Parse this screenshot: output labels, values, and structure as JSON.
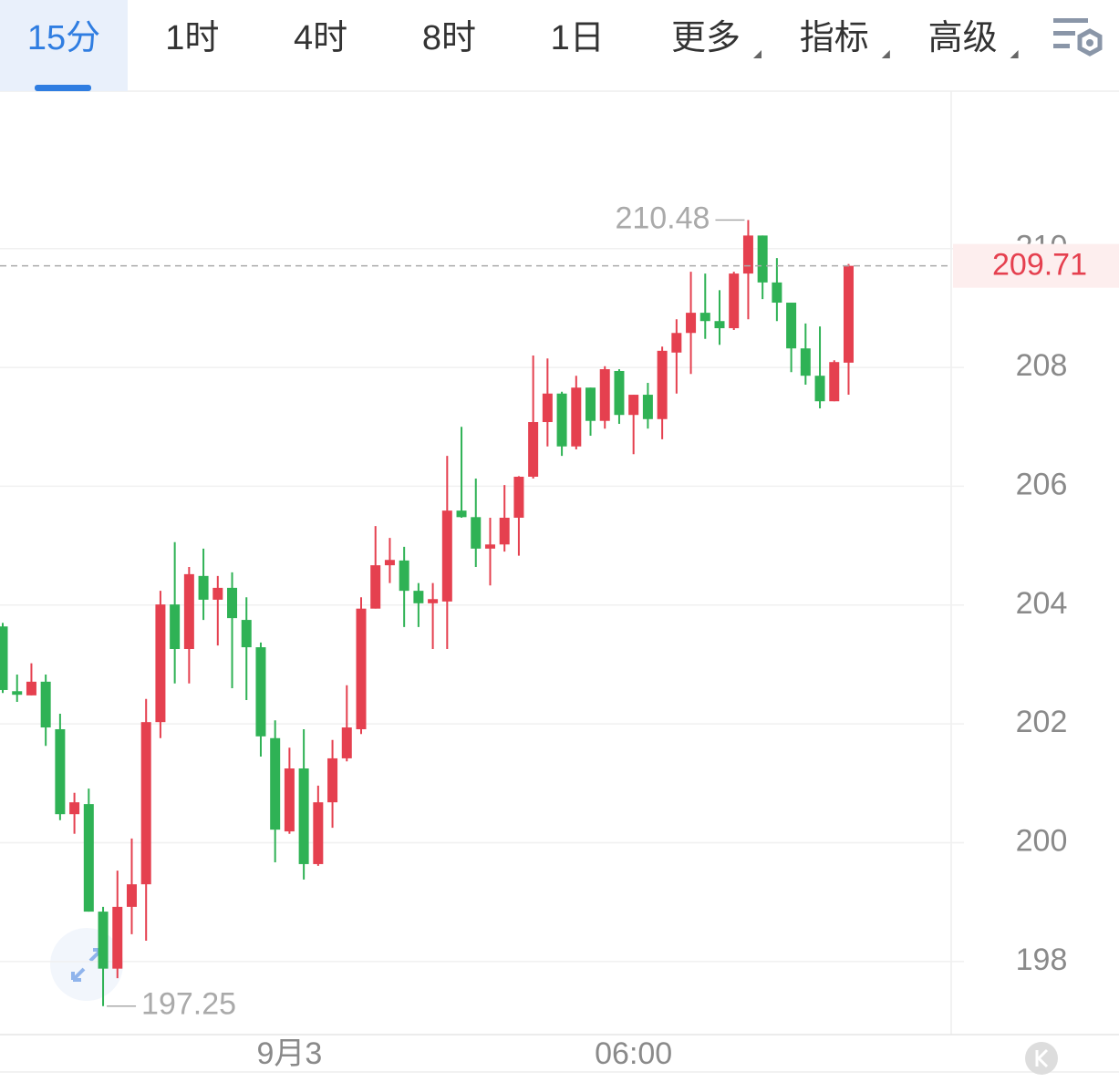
{
  "toolbar": {
    "tabs": [
      "15分",
      "1时",
      "4时",
      "8时",
      "1日",
      "更多",
      "指标",
      "高级"
    ],
    "active": 0
  },
  "chart_data": {
    "type": "candlestick",
    "up_color": "#e5404f",
    "down_color": "#2fb255",
    "categories": [
      null,
      null,
      null,
      null,
      null,
      null,
      null,
      null,
      null,
      null,
      null,
      null,
      null,
      null,
      null,
      null,
      null,
      null,
      null,
      null,
      "9月3",
      null,
      null,
      null,
      null,
      null,
      null,
      null,
      null,
      null,
      null,
      null,
      null,
      null,
      null,
      null,
      null,
      null,
      null,
      null,
      null,
      null,
      null,
      null,
      "06:00",
      null,
      null,
      null,
      null,
      null,
      null,
      null,
      null,
      null,
      null,
      null,
      null,
      null,
      null,
      null
    ],
    "open": [
      203.64,
      202.55,
      202.48,
      202.71,
      201.91,
      200.48,
      200.65,
      198.84,
      197.88,
      198.92,
      199.3,
      202.03,
      204.01,
      203.26,
      204.49,
      204.09,
      204.29,
      203.75,
      203.29,
      201.76,
      200.19,
      201.25,
      199.64,
      200.68,
      201.42,
      201.91,
      203.94,
      204.67,
      204.75,
      204.24,
      204.03,
      204.06,
      205.59,
      205.48,
      204.95,
      205.02,
      205.47,
      206.16,
      207.08,
      207.56,
      206.67,
      207.66,
      207.1,
      207.94,
      207.2,
      207.54,
      207.13,
      208.25,
      208.58,
      208.92,
      208.78,
      208.66,
      209.58,
      210.22,
      209.43,
      209.09,
      208.32,
      207.86,
      207.43,
      208.08
    ],
    "high": [
      203.7,
      202.83,
      203.02,
      202.83,
      202.17,
      200.84,
      200.91,
      198.92,
      199.53,
      200.07,
      202.42,
      204.24,
      205.06,
      204.64,
      204.95,
      204.49,
      204.55,
      204.13,
      203.37,
      202.06,
      201.6,
      201.91,
      200.96,
      201.73,
      202.65,
      204.13,
      205.33,
      205.13,
      204.98,
      204.37,
      204.37,
      206.51,
      207.0,
      206.13,
      205.47,
      206.02,
      206.17,
      208.2,
      208.15,
      207.59,
      207.86,
      207.66,
      208.02,
      207.97,
      207.54,
      207.74,
      208.35,
      208.81,
      209.61,
      209.58,
      209.3,
      209.61,
      210.48,
      210.22,
      209.84,
      209.09,
      208.74,
      208.69,
      208.12,
      209.74
    ],
    "low": [
      202.52,
      202.37,
      202.48,
      201.63,
      200.38,
      200.15,
      198.84,
      197.25,
      197.72,
      198.46,
      198.35,
      201.76,
      202.68,
      202.68,
      203.75,
      203.32,
      202.6,
      202.4,
      201.45,
      199.67,
      200.15,
      199.38,
      199.61,
      200.25,
      201.37,
      201.83,
      203.94,
      204.37,
      203.63,
      203.63,
      203.26,
      203.26,
      205.47,
      204.64,
      204.33,
      204.9,
      204.83,
      206.13,
      206.67,
      206.51,
      206.62,
      206.85,
      206.97,
      207.05,
      206.54,
      206.97,
      206.79,
      207.56,
      207.89,
      208.48,
      208.38,
      208.63,
      208.81,
      209.15,
      208.78,
      207.92,
      207.71,
      207.31,
      207.43,
      207.54
    ],
    "close": [
      202.57,
      202.49,
      202.71,
      201.94,
      200.48,
      200.68,
      198.84,
      197.88,
      198.92,
      199.3,
      202.03,
      204.01,
      203.26,
      204.52,
      204.09,
      204.29,
      203.78,
      203.29,
      201.79,
      200.22,
      201.25,
      199.64,
      200.68,
      201.42,
      201.94,
      203.94,
      204.67,
      204.76,
      204.24,
      204.03,
      204.1,
      205.59,
      205.48,
      204.95,
      205.02,
      205.47,
      206.16,
      207.08,
      207.56,
      206.67,
      207.66,
      207.1,
      207.97,
      207.2,
      207.54,
      207.13,
      208.28,
      208.58,
      208.92,
      208.78,
      208.66,
      209.58,
      210.22,
      209.43,
      209.09,
      208.32,
      207.86,
      207.43,
      208.09,
      209.71
    ],
    "ylim": [
      196.77,
      212.65
    ],
    "yticks": [
      198,
      200,
      202,
      204,
      206,
      208,
      210
    ],
    "grid": true,
    "high_annotation": 210.48,
    "low_annotation": 197.25,
    "last_price": 209.71,
    "last_price_color": "#e5404f"
  }
}
